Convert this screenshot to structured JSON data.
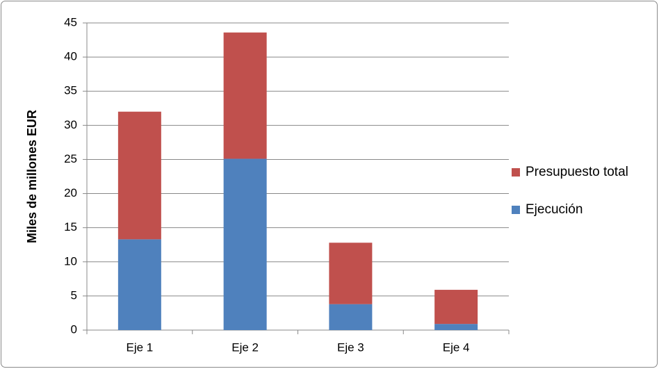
{
  "chart_data": {
    "type": "stacked_bar",
    "y_label": "Miles de millones EUR",
    "categories": [
      "Eje 1",
      "Eje 2",
      "Eje 3",
      "Eje 4"
    ],
    "series": [
      {
        "name": "Ejecución",
        "color": "#4f81bd",
        "values": [
          13.3,
          25.1,
          3.8,
          0.9
        ]
      },
      {
        "name": "Presupuesto total",
        "color": "#c0504d",
        "values": [
          18.7,
          18.5,
          9.0,
          5.0
        ]
      }
    ],
    "ylim": [
      0,
      45
    ],
    "yticks": [
      0,
      5,
      10,
      15,
      20,
      25,
      30,
      35,
      40,
      45
    ],
    "grid": true,
    "legend": "right"
  }
}
